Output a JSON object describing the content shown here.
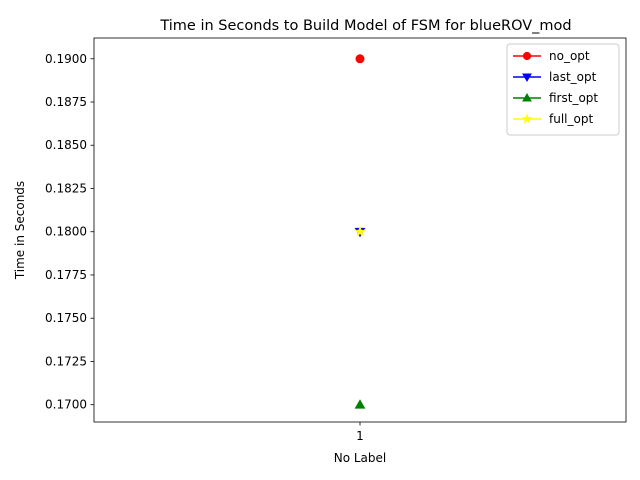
{
  "chart_data": {
    "type": "line",
    "title": "Time in Seconds to Build Model of FSM for blueROV_mod",
    "xlabel": "No Label",
    "ylabel": "Time in Seconds",
    "x_categories": [
      "1"
    ],
    "xlim": [
      0.44,
      1.56
    ],
    "ylim": [
      0.169,
      0.1912
    ],
    "yticks": [
      "0.1700",
      "0.1725",
      "0.1750",
      "0.1775",
      "0.1800",
      "0.1825",
      "0.1850",
      "0.1875",
      "0.1900"
    ],
    "grid": false,
    "legend_position": "top-right",
    "series": [
      {
        "name": "no_opt",
        "color": "#ff0000",
        "marker": "circle",
        "x": [
          1
        ],
        "y": [
          0.19
        ]
      },
      {
        "name": "last_opt",
        "color": "#0000ff",
        "marker": "triangle-down",
        "x": [
          1
        ],
        "y": [
          0.18
        ]
      },
      {
        "name": "first_opt",
        "color": "#008000",
        "marker": "triangle-up",
        "x": [
          1
        ],
        "y": [
          0.17
        ]
      },
      {
        "name": "full_opt",
        "color": "#ffff00",
        "marker": "star",
        "x": [
          1
        ],
        "y": [
          0.18
        ]
      }
    ]
  }
}
